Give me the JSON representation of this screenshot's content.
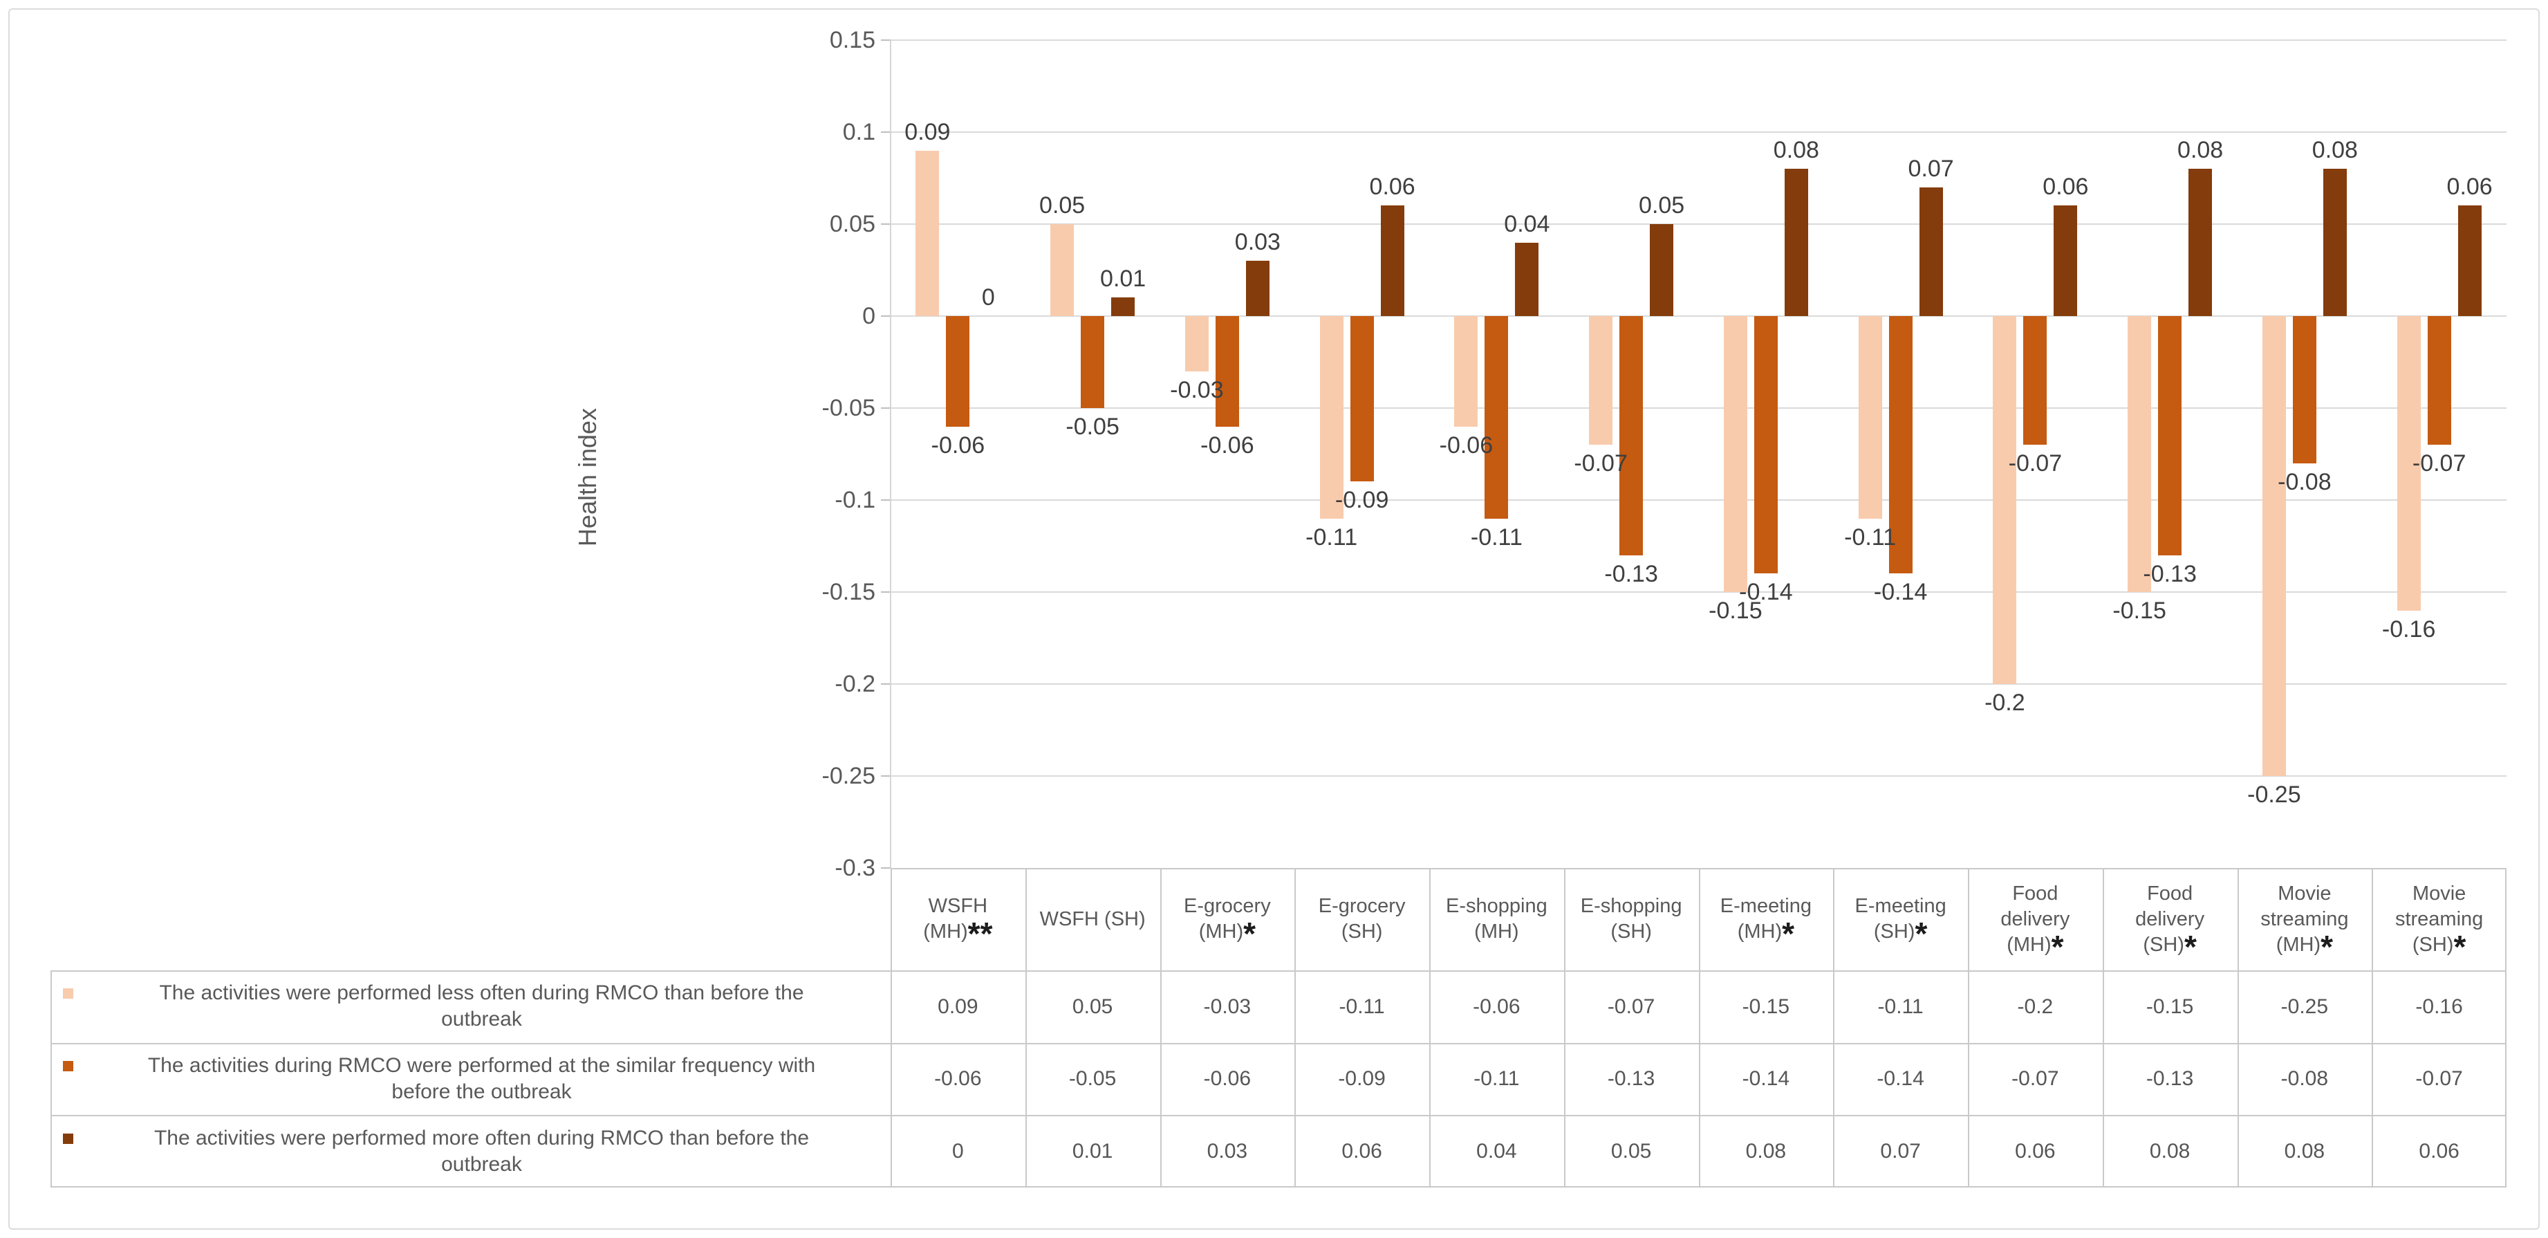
{
  "chart_data": {
    "type": "bar",
    "title": "",
    "ylabel": "Health index",
    "ylim": [
      -0.3,
      0.15
    ],
    "ytick_step": 0.05,
    "ytick_labels": [
      "0.15",
      "0.1",
      "0.05",
      "0",
      "-0.05",
      "-0.1",
      "-0.15",
      "-0.2",
      "-0.25",
      "-0.3"
    ],
    "grid": true,
    "legend_position": "left-of-data-table",
    "categories": [
      {
        "label": "WSFH (MH)**",
        "lines": [
          "WSFH",
          "(MH)"
        ],
        "stars": "**"
      },
      {
        "label": "WSFH (SH)",
        "lines": [
          "WSFH (SH)"
        ],
        "stars": ""
      },
      {
        "label": "E-grocery (MH)*",
        "lines": [
          "E-grocery",
          "(MH)"
        ],
        "stars": "*"
      },
      {
        "label": "E-grocery (SH)",
        "lines": [
          "E-grocery",
          "(SH)"
        ],
        "stars": ""
      },
      {
        "label": "E-shopping (MH)",
        "lines": [
          "E-shopping",
          "(MH)"
        ],
        "stars": ""
      },
      {
        "label": "E-shopping (SH)",
        "lines": [
          "E-shopping",
          "(SH)"
        ],
        "stars": ""
      },
      {
        "label": "E-meeting (MH)*",
        "lines": [
          "E-meeting",
          "(MH)"
        ],
        "stars": "*"
      },
      {
        "label": "E-meeting (SH)*",
        "lines": [
          "E-meeting",
          "(SH)"
        ],
        "stars": "*"
      },
      {
        "label": "Food delivery (MH)*",
        "lines": [
          "Food",
          "delivery",
          "(MH)"
        ],
        "stars": "*"
      },
      {
        "label": "Food delivery (SH)*",
        "lines": [
          "Food",
          "delivery",
          "(SH)"
        ],
        "stars": "*"
      },
      {
        "label": "Movie streaming (MH)*",
        "lines": [
          "Movie",
          "streaming",
          "(MH)"
        ],
        "stars": "*"
      },
      {
        "label": "Movie streaming (SH)*",
        "lines": [
          "Movie",
          "streaming",
          "(SH)"
        ],
        "stars": "*"
      }
    ],
    "series": [
      {
        "name": "The activities were performed less often during RMCO than before the outbreak",
        "name_lines": [
          "The activities were performed less often during RMCO than before the",
          "outbreak"
        ],
        "color": "#F8CBAD",
        "values": [
          0.09,
          0.05,
          -0.03,
          -0.11,
          -0.06,
          -0.07,
          -0.15,
          -0.11,
          -0.2,
          -0.15,
          -0.25,
          -0.16
        ]
      },
      {
        "name": "The activities during RMCO were performed at the similar frequency with before the outbreak",
        "name_lines": [
          "The activities during RMCO were performed at the similar frequency with",
          "before the outbreak"
        ],
        "color": "#C55A11",
        "values": [
          -0.06,
          -0.05,
          -0.06,
          -0.09,
          -0.11,
          -0.13,
          -0.14,
          -0.14,
          -0.07,
          -0.13,
          -0.08,
          -0.07
        ]
      },
      {
        "name": "The activities were performed more often during RMCO than before the outbreak",
        "name_lines": [
          "The activities were performed more often during RMCO than before the",
          "outbreak"
        ],
        "color": "#843C0C",
        "values": [
          0,
          0.01,
          0.03,
          0.06,
          0.04,
          0.05,
          0.08,
          0.07,
          0.06,
          0.08,
          0.08,
          0.06
        ]
      }
    ],
    "colors": {
      "axis_text": "#595959",
      "data_label_text": "#3f3f3f",
      "gridline": "#DADADA",
      "table_border": "#C9C9C9",
      "frame_border": "#DBDBDB"
    }
  }
}
